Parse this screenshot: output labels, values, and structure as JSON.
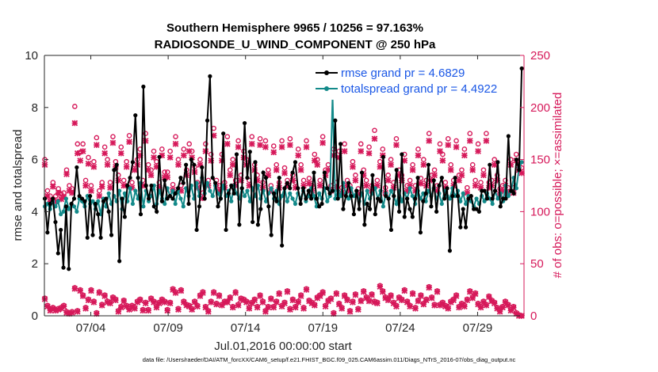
{
  "chart_data": {
    "type": "line",
    "title_line1": "Southern Hemisphere 9965 / 10256 = 97.163%",
    "title_line2": "RADIOSONDE_U_WIND_COMPONENT @ 250 hPa",
    "xlabel": "Jul.01,2016 00:00:00 start",
    "ylabel_left": "rmse and totalspread",
    "ylabel_right": "# of obs: o=possible; ×=assimilated",
    "ylim_left": [
      0,
      10
    ],
    "ylim_right": [
      0,
      250
    ],
    "xlim_days": [
      1.0,
      32.0
    ],
    "yticks_left": [
      0,
      2,
      4,
      6,
      8,
      10
    ],
    "yticks_right": [
      0,
      50,
      100,
      150,
      200,
      250
    ],
    "xtick_days": [
      4,
      9,
      14,
      19,
      24,
      29
    ],
    "xtick_labels": [
      "07/04",
      "07/09",
      "07/14",
      "07/19",
      "07/24",
      "07/29"
    ],
    "footnote": "data file: /Users/raeder/DAI/ATM_forcXX/CAM6_setup/f.e21.FHIST_BGC.f09_025.CAM6assim.011/Diags_NTrS_2016-07/obs_diag_output.nc",
    "colors": {
      "rmse": "#000000",
      "spread": "#138a8a",
      "obs": "#d6195a",
      "legend_text": "#1a57e6"
    },
    "series": [
      {
        "name": "rmse",
        "legend": "rmse grand pr = 4.6829",
        "values": [
          4.5,
          3.2,
          4.3,
          4.5,
          3.6,
          2.4,
          3.3,
          1.85,
          4.2,
          1.8,
          4.3,
          4.5,
          5.7,
          4.6,
          4.5,
          4.4,
          3.0,
          4.6,
          3.1,
          4.3,
          3.9,
          3.0,
          4.4,
          4.5,
          4.0,
          3.1,
          5.6,
          5.8,
          2.1,
          4.5,
          3.8,
          5.0,
          5.3,
          5.9,
          7.7,
          5.3,
          3.9,
          8.8,
          5.0,
          4.5,
          5.0,
          4.2,
          4.0,
          6.1,
          4.4,
          5.2,
          4.5,
          4.6,
          4.5,
          4.7,
          4.9,
          5.3,
          5.1,
          5.8,
          4.3,
          6.0,
          5.8,
          3.3,
          4.2,
          5.7,
          4.5,
          7.5,
          9.2,
          5.3,
          5.1,
          4.2,
          4.5,
          7.0,
          3.3,
          4.7,
          5.0,
          4.7,
          6.2,
          3.5,
          4.9,
          7.4,
          5.3,
          6.3,
          3.6,
          5.9,
          3.5,
          4.1,
          5.5,
          5.3,
          4.2,
          3.1,
          4.7,
          4.4,
          5.3,
          2.7,
          4.9,
          5.1,
          4.9,
          5.5,
          5.9,
          4.9,
          4.3,
          4.9,
          4.5,
          4.8,
          4.5,
          5.5,
          4.5,
          4.2,
          4.3,
          5.5,
          4.9,
          4.7,
          4.8,
          7.5,
          4.5,
          6.6,
          4.1,
          4.6,
          5.1,
          4.6,
          3.9,
          4.8,
          4.1,
          5.5,
          3.5,
          4.3,
          4.1,
          5.4,
          3.9,
          4.5,
          4.4,
          6.1,
          4.6,
          4.5,
          3.3,
          4.6,
          5.6,
          4.0,
          6.2,
          3.8,
          4.5,
          4.1,
          3.8,
          4.5,
          5.3,
          3.2,
          4.4,
          4.7,
          5.8,
          4.2,
          5.2,
          4.0,
          5.0,
          5.3,
          4.5,
          4.9,
          2.5,
          4.6,
          5.3,
          4.6,
          3.4,
          4.1,
          3.4,
          4.5,
          4.6,
          4.1,
          4.1,
          4.0,
          4.8,
          4.8,
          4.5,
          5.8,
          4.5,
          4.8,
          5.9,
          4.2,
          4.5,
          4.5,
          6.9,
          4.8,
          4.7,
          6.0,
          5.6,
          9.5
        ],
        "grand": 4.6829
      },
      {
        "name": "totalspread",
        "legend": "totalspread grand pr = 4.4922",
        "values": [
          4.2,
          4.3,
          4.1,
          4.4,
          4.2,
          4.4,
          3.9,
          4.0,
          4.5,
          4.1,
          4.3,
          4.2,
          4.0,
          4.5,
          4.4,
          4.2,
          4.6,
          4.3,
          4.4,
          4.1,
          4.4,
          3.9,
          4.5,
          4.2,
          4.7,
          4.3,
          4.6,
          4.4,
          4.8,
          4.1,
          4.7,
          4.4,
          4.9,
          4.3,
          4.8,
          4.5,
          5.1,
          4.2,
          4.8,
          4.4,
          4.6,
          5.0,
          4.3,
          4.8,
          4.5,
          4.3,
          4.9,
          4.6,
          4.8,
          4.3,
          4.8,
          4.5,
          4.2,
          4.9,
          4.6,
          5.0,
          4.5,
          5.1,
          4.6,
          5.3,
          4.7,
          5.1,
          4.8,
          4.6,
          5.0,
          4.7,
          4.5,
          5.0,
          4.6,
          4.8,
          4.4,
          5.0,
          4.7,
          4.5,
          4.9,
          4.6,
          4.8,
          4.4,
          4.9,
          4.6,
          5.0,
          4.5,
          4.8,
          4.4,
          4.7,
          4.9,
          4.5,
          4.8,
          4.3,
          4.6,
          4.9,
          4.4,
          4.7,
          4.5,
          4.3,
          4.7,
          4.5,
          4.8,
          4.4,
          4.6,
          4.9,
          4.6,
          4.2,
          4.7,
          4.5,
          4.9,
          4.4,
          4.6,
          8.4,
          4.5,
          4.8,
          4.6,
          5.1,
          4.7,
          4.5,
          4.9,
          4.6,
          4.8,
          4.4,
          4.7,
          4.3,
          4.8,
          4.5,
          4.7,
          4.9,
          4.5,
          4.8,
          4.2,
          4.7,
          4.5,
          4.8,
          4.6,
          4.3,
          4.8,
          4.4,
          4.7,
          4.5,
          4.9,
          4.6,
          4.3,
          4.8,
          4.5,
          4.7,
          4.4,
          4.8,
          4.6,
          4.9,
          4.5,
          4.7,
          4.3,
          4.8,
          4.6,
          4.5,
          4.9,
          4.6,
          4.8,
          4.4,
          4.7,
          4.3,
          4.6,
          4.4,
          4.2,
          4.5,
          4.3,
          4.6,
          4.4,
          4.7,
          4.5,
          4.3,
          4.8,
          4.5,
          4.7,
          4.4,
          5.0,
          4.6,
          4.8,
          5.3,
          4.9,
          5.7,
          5.9
        ],
        "grand": 4.4922
      },
      {
        "name": "obs_possible",
        "marker": "o",
        "values": [
          150,
          120,
          115,
          128,
          115,
          122,
          117,
          118,
          140,
          125,
          122,
          201,
          165,
          157,
          165,
          130,
          152,
          125,
          148,
          171,
          120,
          128,
          162,
          150,
          128,
          172,
          148,
          135,
          162,
          130,
          148,
          173,
          128,
          145,
          150,
          160,
          130,
          175,
          145,
          140,
          158,
          148,
          128,
          160,
          138,
          138,
          158,
          126,
          172,
          150,
          125,
          160,
          140,
          165,
          158,
          143,
          128,
          150,
          118,
          165,
          130,
          155,
          180,
          130,
          125,
          155,
          128,
          172,
          140,
          150,
          130,
          168,
          135,
          158,
          150,
          130,
          172,
          145,
          135,
          170,
          128,
          168,
          140,
          125,
          163,
          145,
          128,
          168,
          142,
          130,
          170,
          135,
          128,
          160,
          145,
          130,
          168,
          132,
          125,
          155,
          150,
          130,
          172,
          140,
          145,
          125,
          160,
          128,
          158,
          123,
          165,
          130,
          125,
          148,
          135,
          122,
          165,
          140,
          130,
          162,
          125,
          178,
          130,
          148,
          160,
          123,
          135,
          150,
          128,
          170,
          140,
          135,
          155,
          125,
          130,
          145,
          125,
          160,
          132,
          150,
          130,
          175,
          135,
          140,
          125,
          165,
          155,
          128,
          170,
          145,
          130,
          168,
          135,
          140,
          160,
          123,
          175,
          145,
          130,
          165,
          128,
          140,
          175,
          128,
          130,
          150,
          135,
          122,
          125,
          130,
          123,
          150,
          123,
          155,
          145,
          142
        ],
        "offset": 0.15
      },
      {
        "name": "obs_assimilated",
        "marker": "x",
        "values": [
          145,
          115,
          110,
          124,
          110,
          118,
          112,
          114,
          136,
          120,
          118,
          185,
          156,
          149,
          158,
          125,
          146,
          120,
          143,
          164,
          115,
          124,
          156,
          145,
          123,
          166,
          143,
          130,
          156,
          125,
          143,
          167,
          123,
          140,
          145,
          154,
          125,
          168,
          140,
          135,
          152,
          143,
          123,
          154,
          133,
          133,
          152,
          121,
          165,
          145,
          120,
          154,
          135,
          158,
          152,
          138,
          123,
          145,
          113,
          158,
          125,
          149,
          173,
          125,
          120,
          149,
          123,
          165,
          135,
          145,
          125,
          162,
          130,
          152,
          145,
          125,
          165,
          140,
          130,
          164,
          123,
          162,
          135,
          120,
          157,
          140,
          123,
          162,
          137,
          125,
          164,
          130,
          123,
          154,
          140,
          125,
          162,
          127,
          120,
          149,
          145,
          125,
          166,
          135,
          140,
          120,
          154,
          123,
          152,
          118,
          158,
          125,
          120,
          143,
          130,
          117,
          158,
          135,
          125,
          156,
          120,
          170,
          125,
          143,
          154,
          118,
          130,
          145,
          123,
          164,
          135,
          130,
          149,
          120,
          125,
          140,
          120,
          154,
          127,
          145,
          125,
          168,
          130,
          135,
          120,
          158,
          149,
          123,
          164,
          140,
          125,
          162,
          130,
          135,
          154,
          118,
          168,
          140,
          125,
          158,
          123,
          135,
          168,
          123,
          125,
          145,
          130,
          117,
          120,
          125,
          118,
          145,
          118,
          149,
          140,
          137
        ],
        "offset": 0.15
      },
      {
        "name": "obs_low_possible",
        "marker": "o",
        "values": [
          17,
          10,
          6,
          8,
          6,
          7,
          8,
          10,
          4,
          3,
          4,
          27,
          5,
          25,
          20,
          8,
          16,
          25,
          14,
          3,
          23,
          11,
          20,
          14,
          13,
          18,
          16,
          5,
          9,
          15,
          10,
          7,
          10,
          8,
          14,
          16,
          6,
          13,
          6,
          17,
          14,
          9,
          13,
          16,
          14,
          6,
          13,
          26,
          23,
          7,
          25,
          14,
          11,
          10,
          7,
          14,
          10,
          20,
          23,
          9,
          5,
          14,
          23,
          12,
          20,
          11,
          14,
          14,
          18,
          9,
          23,
          11,
          17,
          16,
          14,
          8,
          13,
          16,
          9,
          20,
          14,
          5,
          9,
          17,
          9,
          14,
          22,
          10,
          13,
          24,
          7,
          16,
          9,
          14,
          20,
          8,
          26,
          15,
          13,
          11,
          18,
          20,
          23,
          10,
          15,
          17,
          3,
          22,
          12,
          8,
          20,
          16,
          5,
          14,
          21,
          7,
          15,
          24,
          18,
          15,
          21,
          14,
          13,
          29,
          24,
          18,
          16,
          20,
          13,
          10,
          18,
          16,
          25,
          14,
          10,
          22,
          8,
          15,
          20,
          12,
          16,
          28,
          18,
          11,
          24,
          11,
          13,
          10,
          8,
          14,
          16,
          20,
          9,
          12,
          10,
          16,
          24,
          18,
          22,
          12,
          9,
          14,
          11,
          19,
          15,
          13,
          8,
          5,
          9,
          14,
          11,
          6,
          9,
          3,
          1,
          0
        ],
        "offset": 0.15
      },
      {
        "name": "obs_low_assimilated",
        "marker": "x",
        "values": [
          16,
          9,
          5,
          7,
          5,
          6,
          7,
          9,
          3,
          2,
          3,
          26,
          4,
          24,
          19,
          7,
          15,
          24,
          13,
          2,
          22,
          10,
          19,
          13,
          12,
          17,
          15,
          4,
          8,
          14,
          9,
          6,
          9,
          7,
          13,
          15,
          5,
          12,
          5,
          16,
          13,
          8,
          12,
          15,
          13,
          5,
          12,
          25,
          22,
          6,
          24,
          13,
          10,
          9,
          6,
          13,
          9,
          19,
          22,
          8,
          4,
          13,
          22,
          11,
          19,
          10,
          13,
          13,
          17,
          8,
          22,
          10,
          16,
          15,
          13,
          7,
          12,
          15,
          8,
          19,
          13,
          4,
          8,
          16,
          8,
          13,
          21,
          9,
          12,
          23,
          6,
          15,
          8,
          13,
          19,
          7,
          25,
          14,
          12,
          10,
          17,
          19,
          22,
          9,
          14,
          16,
          2,
          21,
          11,
          7,
          19,
          15,
          4,
          13,
          20,
          6,
          14,
          23,
          17,
          14,
          20,
          13,
          12,
          28,
          23,
          17,
          15,
          19,
          12,
          9,
          17,
          15,
          24,
          13,
          9,
          21,
          7,
          14,
          19,
          11,
          15,
          27,
          17,
          10,
          23,
          10,
          12,
          9,
          7,
          13,
          15,
          19,
          8,
          11,
          9,
          15,
          23,
          17,
          21,
          11,
          8,
          13,
          10,
          18,
          14,
          12,
          7,
          4,
          8,
          13,
          10,
          5,
          8,
          2,
          0,
          0
        ],
        "offset": 0.15
      }
    ]
  }
}
